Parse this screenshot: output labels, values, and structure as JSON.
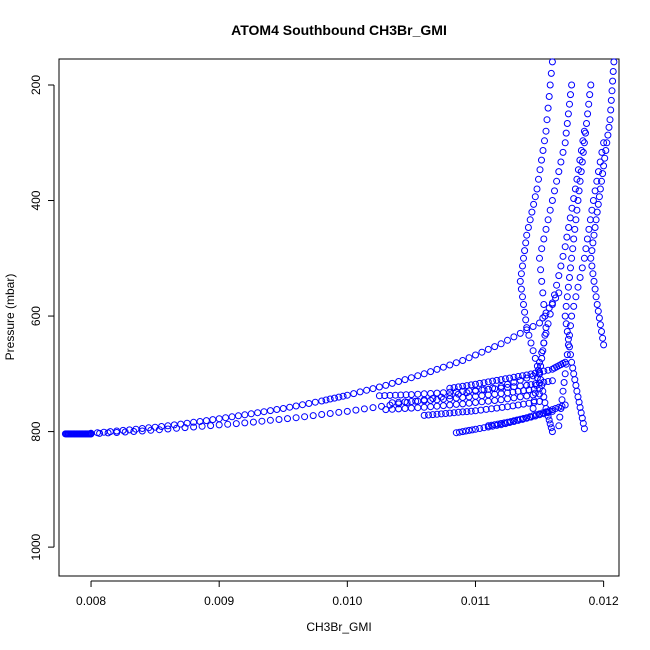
{
  "chart_data": {
    "type": "scatter",
    "title": "ATOM4 Southbound CH3Br_GMI",
    "xlabel": "CH3Br_GMI",
    "ylabel": "Pressure (mbar)",
    "xlim": [
      0.00775,
      0.01212
    ],
    "ylim": [
      1050,
      155
    ],
    "y_inverted": true,
    "xticks": [
      {
        "value": 0.008,
        "label": "0.008"
      },
      {
        "value": 0.009,
        "label": "0.009"
      },
      {
        "value": 0.01,
        "label": "0.010"
      },
      {
        "value": 0.011,
        "label": "0.011"
      },
      {
        "value": 0.012,
        "label": "0.012"
      }
    ],
    "yticks": [
      {
        "value": 200,
        "label": "200"
      },
      {
        "value": 400,
        "label": "400"
      },
      {
        "value": 600,
        "label": "600"
      },
      {
        "value": 800,
        "label": "800"
      },
      {
        "value": 1000,
        "label": "1000"
      }
    ],
    "marker": "open-circle",
    "color": "#0000ff",
    "grid": false,
    "series": [
      {
        "x": [
          0.0078,
          0.00784,
          0.00788,
          0.00792,
          0.00796,
          0.008
        ],
        "y": [
          804,
          804,
          804,
          804,
          804,
          804
        ]
      },
      {
        "x": [
          0.008,
          0.0083,
          0.0086,
          0.0089,
          0.0092,
          0.0095,
          0.0098,
          0.01,
          0.0103,
          0.0106,
          0.0109,
          0.0112,
          0.0115,
          0.01165
        ],
        "y": [
          803,
          797,
          790,
          781,
          771,
          760,
          747,
          737,
          720,
          700,
          677,
          648,
          612,
          560
        ]
      },
      {
        "x": [
          0.008,
          0.0084,
          0.0088,
          0.0092,
          0.0096,
          0.01,
          0.0104,
          0.0108,
          0.0112,
          0.0115
        ],
        "y": [
          804,
          799,
          792,
          785,
          776,
          765,
          752,
          738,
          722,
          700
        ]
      },
      {
        "x": [
          0.01025,
          0.0105,
          0.0108,
          0.0111,
          0.0114,
          0.0116
        ],
        "y": [
          738,
          736,
          732,
          727,
          720,
          712
        ]
      },
      {
        "x": [
          0.0103,
          0.0106,
          0.0109,
          0.0112,
          0.0115
        ],
        "y": [
          762,
          758,
          752,
          745,
          735
        ]
      },
      {
        "x": [
          0.01035,
          0.01065,
          0.01095,
          0.01125,
          0.0115
        ],
        "y": [
          750,
          746,
          740,
          733,
          725
        ]
      },
      {
        "x": [
          0.0106,
          0.0108,
          0.011,
          0.01125,
          0.0115
        ],
        "y": [
          772,
          768,
          764,
          757,
          748
        ]
      },
      {
        "x": [
          0.01085,
          0.011,
          0.0112,
          0.0114,
          0.0116
        ],
        "y": [
          802,
          796,
          788,
          777,
          765
        ]
      },
      {
        "x": [
          0.0111,
          0.01125,
          0.0114,
          0.01155,
          0.0117
        ],
        "y": [
          790,
          784,
          776,
          766,
          754
        ]
      },
      {
        "x": [
          0.0108,
          0.011,
          0.0112,
          0.0114,
          0.0116,
          0.0117
        ],
        "y": [
          725,
          718,
          710,
          702,
          692,
          680
        ]
      },
      {
        "x": [
          0.0116,
          0.01155,
          0.0115,
          0.01155,
          0.0115,
          0.0116,
          0.0117,
          0.01175
        ],
        "y": [
          800,
          760,
          700,
          620,
          500,
          400,
          300,
          200
        ]
      },
      {
        "x": [
          0.01185,
          0.0118,
          0.01175,
          0.0117,
          0.01175,
          0.0118,
          0.01185,
          0.0119
        ],
        "y": [
          795,
          740,
          680,
          600,
          500,
          400,
          300,
          200
        ]
      },
      {
        "x": [
          0.0115,
          0.0114,
          0.01135,
          0.0114,
          0.01148,
          0.01155,
          0.0116
        ],
        "y": [
          700,
          620,
          540,
          460,
          380,
          280,
          160
        ]
      },
      {
        "x": [
          0.012,
          0.01195,
          0.0119,
          0.01195,
          0.012,
          0.01205,
          0.01208
        ],
        "y": [
          650,
          580,
          500,
          420,
          340,
          260,
          160
        ]
      },
      {
        "x": [
          0.01145,
          0.0115,
          0.0116,
          0.0117,
          0.01178,
          0.01185
        ],
        "y": [
          760,
          680,
          580,
          480,
          380,
          280
        ]
      },
      {
        "x": [
          0.01165,
          0.0117,
          0.01175,
          0.01185,
          0.01192,
          0.012
        ],
        "y": [
          790,
          700,
          600,
          500,
          400,
          300
        ]
      }
    ]
  }
}
